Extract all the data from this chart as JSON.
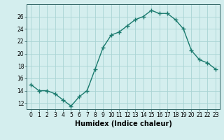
{
  "x": [
    0,
    1,
    2,
    3,
    4,
    5,
    6,
    7,
    8,
    9,
    10,
    11,
    12,
    13,
    14,
    15,
    16,
    17,
    18,
    19,
    20,
    21,
    22,
    23
  ],
  "y": [
    15,
    14,
    14,
    13.5,
    12.5,
    11.5,
    13,
    14,
    17.5,
    21,
    23,
    23.5,
    24.5,
    25.5,
    26,
    27,
    26.5,
    26.5,
    25.5,
    24,
    20.5,
    19,
    18.5,
    17.5
  ],
  "line_color": "#1a7a6e",
  "marker": "+",
  "marker_size": 4,
  "marker_linewidth": 1.0,
  "background_color": "#d4eeee",
  "grid_color": "#aad4d4",
  "xlabel": "Humidex (Indice chaleur)",
  "xlim": [
    -0.5,
    23.5
  ],
  "ylim": [
    11,
    28
  ],
  "yticks": [
    12,
    14,
    16,
    18,
    20,
    22,
    24,
    26
  ],
  "xticks": [
    0,
    1,
    2,
    3,
    4,
    5,
    6,
    7,
    8,
    9,
    10,
    11,
    12,
    13,
    14,
    15,
    16,
    17,
    18,
    19,
    20,
    21,
    22,
    23
  ],
  "tick_fontsize": 5.5,
  "xlabel_fontsize": 7,
  "linewidth": 1.0
}
